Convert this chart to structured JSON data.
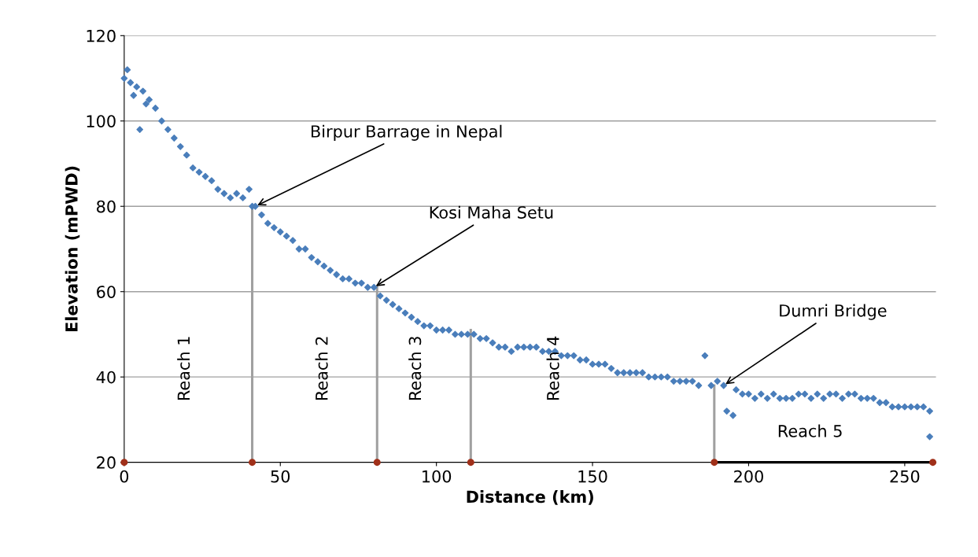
{
  "chart_data": {
    "type": "scatter",
    "xlabel": "Distance (km)",
    "ylabel": "Elevation (mPWD)",
    "xlim": [
      0,
      260
    ],
    "ylim": [
      20,
      120
    ],
    "xticks": [
      0,
      50,
      100,
      150,
      200,
      250
    ],
    "yticks": [
      20,
      40,
      60,
      80,
      100,
      120
    ],
    "grid": "y",
    "series": [
      {
        "marker": "diamond",
        "color": "#4a7ebb",
        "x": [
          0,
          1,
          2,
          3,
          4,
          5,
          6,
          7,
          8,
          10,
          12,
          14,
          16,
          18,
          20,
          22,
          24,
          26,
          28,
          30,
          32,
          34,
          36,
          38,
          40,
          41,
          42,
          44,
          46,
          48,
          50,
          52,
          54,
          56,
          58,
          60,
          62,
          64,
          66,
          68,
          70,
          72,
          74,
          76,
          78,
          80,
          82,
          84,
          86,
          88,
          90,
          92,
          94,
          96,
          98,
          100,
          102,
          104,
          106,
          108,
          110,
          112,
          114,
          116,
          118,
          120,
          122,
          124,
          126,
          128,
          130,
          132,
          134,
          136,
          138,
          140,
          142,
          144,
          146,
          148,
          150,
          152,
          154,
          156,
          158,
          160,
          162,
          164,
          166,
          168,
          170,
          172,
          174,
          176,
          178,
          180,
          182,
          184,
          186,
          188,
          190,
          192,
          193,
          195,
          196,
          198,
          200,
          202,
          204,
          206,
          208,
          210,
          212,
          214,
          216,
          218,
          220,
          222,
          224,
          226,
          228,
          230,
          232,
          234,
          236,
          238,
          240,
          242,
          244,
          246,
          248,
          250,
          252,
          254,
          256,
          258,
          258
        ],
        "values": [
          110,
          112,
          109,
          106,
          108,
          98,
          107,
          104,
          105,
          103,
          100,
          98,
          96,
          94,
          92,
          89,
          88,
          87,
          86,
          84,
          83,
          82,
          83,
          82,
          84,
          80,
          80,
          78,
          76,
          75,
          74,
          73,
          72,
          70,
          70,
          68,
          67,
          66,
          65,
          64,
          63,
          63,
          62,
          62,
          61,
          61,
          59,
          58,
          57,
          56,
          55,
          54,
          53,
          52,
          52,
          51,
          51,
          51,
          50,
          50,
          50,
          50,
          49,
          49,
          48,
          47,
          47,
          46,
          47,
          47,
          47,
          47,
          46,
          46,
          46,
          45,
          45,
          45,
          44,
          44,
          43,
          43,
          43,
          42,
          41,
          41,
          41,
          41,
          41,
          40,
          40,
          40,
          40,
          39,
          39,
          39,
          39,
          38,
          45,
          38,
          39,
          38,
          32,
          31,
          37,
          36,
          36,
          35,
          36,
          35,
          36,
          35,
          35,
          35,
          36,
          36,
          35,
          36,
          35,
          36,
          36,
          35,
          36,
          36,
          35,
          35,
          35,
          34,
          34,
          33,
          33,
          33,
          33,
          33,
          33,
          32,
          26
        ]
      },
      {
        "type": "line",
        "color": "#a0a0a0",
        "x": [
          41,
          41
        ],
        "values": [
          20,
          80
        ]
      },
      {
        "type": "line",
        "color": "#a0a0a0",
        "x": [
          81,
          81
        ],
        "values": [
          20,
          61
        ]
      },
      {
        "type": "line",
        "color": "#a0a0a0",
        "x": [
          111,
          111
        ],
        "values": [
          20,
          51
        ]
      },
      {
        "type": "line",
        "color": "#a0a0a0",
        "x": [
          189,
          189
        ],
        "values": [
          20,
          38
        ]
      },
      {
        "type": "line",
        "color": "#000000",
        "x": [
          189,
          259
        ],
        "values": [
          20,
          20
        ]
      },
      {
        "type": "scatter",
        "color": "#a0301a",
        "marker": "circle",
        "x": [
          0,
          41,
          81,
          111,
          189,
          259
        ],
        "values": [
          20,
          20,
          20,
          20,
          20,
          20
        ]
      }
    ],
    "annotations": [
      {
        "text": "Birpur Barrage in Nepal",
        "x": 42,
        "y": 80
      },
      {
        "text": "Kosi Maha Setu",
        "x": 80,
        "y": 61
      },
      {
        "text": "Dumri Bridge",
        "x": 192,
        "y": 38
      },
      "Reach 1",
      "Reach 2",
      "Reach 3",
      "Reach 4",
      "Reach 5"
    ]
  }
}
